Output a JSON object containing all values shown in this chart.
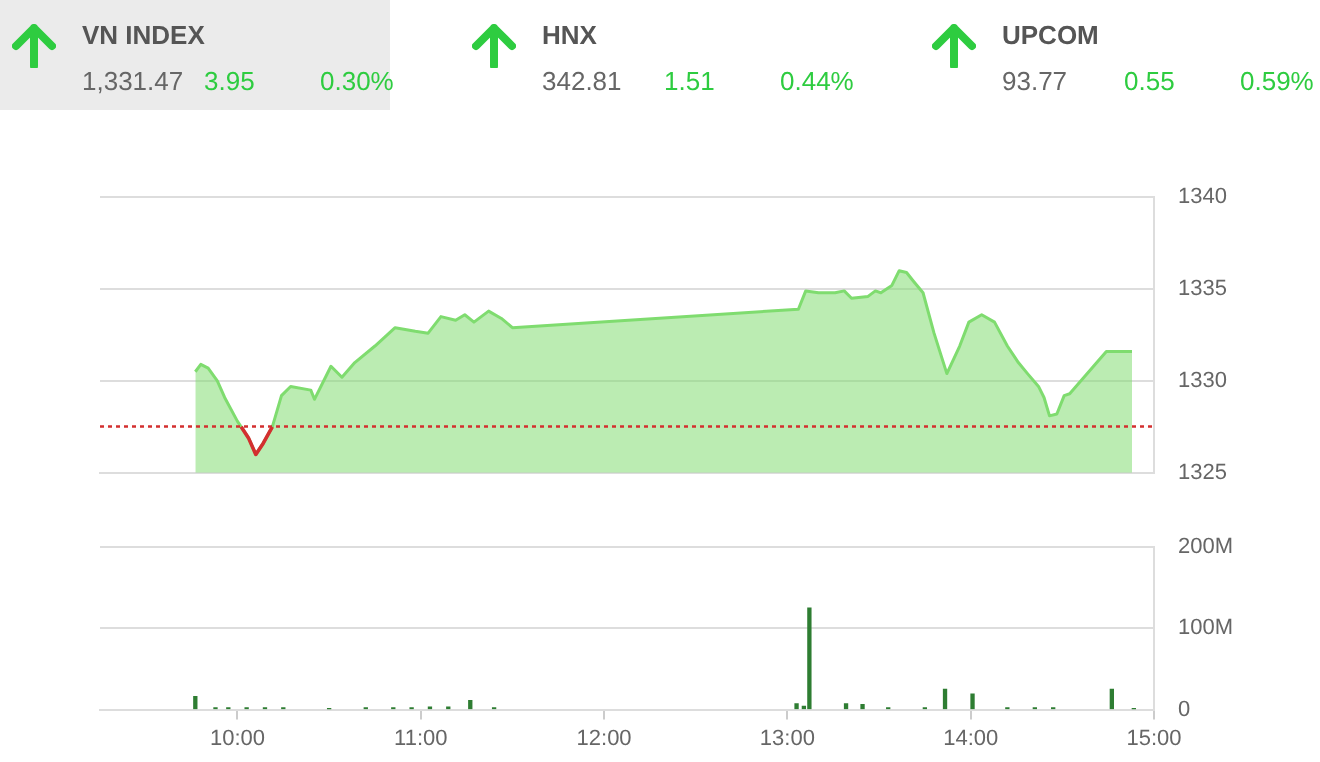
{
  "chart_data": [
    {
      "type": "other",
      "title": "VN INDEX",
      "annotations": [
        "1,331.47",
        "3.95",
        "0.30%"
      ]
    },
    {
      "type": "other",
      "title": "HNX",
      "annotations": [
        "342.81",
        "1.51",
        "0.44%"
      ]
    },
    {
      "type": "other",
      "title": "UPCOM",
      "annotations": [
        "93.77",
        "0.55",
        "0.59%"
      ]
    },
    {
      "type": "area",
      "xlim": [
        9.25,
        15
      ],
      "ylim": [
        1325,
        1340
      ],
      "yticks": [
        1325,
        1330,
        1335,
        1340
      ],
      "tick_labels": "y",
      "grid": "y",
      "ref_lines": [
        {
          "axis": "y",
          "value": 1327.52,
          "color": "#d32f2f",
          "line_style": "dotted"
        }
      ],
      "series": [
        {
          "color": "#7fdc6f",
          "x": [
            9.77,
            9.8,
            9.84,
            9.89,
            9.93,
            10.0,
            10.06,
            10.1,
            10.14,
            10.19,
            10.24,
            10.29,
            10.4,
            10.42,
            10.51,
            10.57,
            10.64,
            10.75,
            10.86,
            10.97,
            11.04,
            11.11,
            11.19,
            11.24,
            11.29,
            11.37,
            11.44,
            11.5,
            13.06,
            13.1,
            13.17,
            13.26,
            13.31,
            13.35,
            13.44,
            13.48,
            13.51,
            13.57,
            13.61,
            13.65,
            13.69,
            13.74,
            13.8,
            13.87,
            13.94,
            13.99,
            14.06,
            14.13,
            14.2,
            14.26,
            14.31,
            14.37,
            14.4,
            14.43,
            14.47,
            14.51,
            14.54,
            14.74,
            14.88
          ],
          "values": [
            1330.5,
            1330.9,
            1330.7,
            1330.0,
            1329.1,
            1327.8,
            1326.9,
            1326.0,
            1326.6,
            1327.5,
            1329.2,
            1329.7,
            1329.5,
            1329.0,
            1330.8,
            1330.2,
            1331.0,
            1331.9,
            1332.9,
            1332.7,
            1332.6,
            1333.5,
            1333.3,
            1333.6,
            1333.2,
            1333.8,
            1333.4,
            1332.9,
            1333.9,
            1334.9,
            1334.8,
            1334.8,
            1334.9,
            1334.5,
            1334.6,
            1334.9,
            1334.8,
            1335.2,
            1336.0,
            1335.9,
            1335.4,
            1334.8,
            1332.6,
            1330.4,
            1331.9,
            1333.2,
            1333.6,
            1333.2,
            1331.9,
            1331.0,
            1330.4,
            1329.7,
            1329.1,
            1328.1,
            1328.2,
            1329.2,
            1329.3,
            1331.6,
            1331.6
          ]
        },
        {
          "type": "line",
          "color": "#d32f2f",
          "x": [
            10.02,
            10.06,
            10.1,
            10.14,
            10.19
          ],
          "values": [
            1327.5,
            1326.9,
            1326.0,
            1326.6,
            1327.5
          ]
        }
      ]
    },
    {
      "type": "bar",
      "xlim": [
        9.25,
        15
      ],
      "xticks": [
        {
          "value": 10,
          "label": "10:00"
        },
        {
          "value": 11,
          "label": "11:00"
        },
        {
          "value": 12,
          "label": "12:00"
        },
        {
          "value": 13,
          "label": "13:00"
        },
        {
          "value": 14,
          "label": "14:00"
        },
        {
          "value": 15,
          "label": "15:00"
        }
      ],
      "ylim": [
        0,
        200
      ],
      "yticks": [
        0,
        {
          "value": 100,
          "label": "100M"
        },
        {
          "value": 200,
          "label": "200M"
        }
      ],
      "grid": "y",
      "series": [
        {
          "color": "#2e7d32",
          "x": [
            9.77,
            9.88,
            9.95,
            10.05,
            10.15,
            10.25,
            10.5,
            10.7,
            10.85,
            10.95,
            11.05,
            11.15,
            11.27,
            11.4,
            13.05,
            13.09,
            13.12,
            13.32,
            13.41,
            13.55,
            13.75,
            13.86,
            14.01,
            14.2,
            14.35,
            14.45,
            14.77,
            14.89
          ],
          "values": [
            16,
            2,
            2,
            2,
            2,
            2,
            1,
            2,
            2,
            2,
            3,
            3,
            11,
            2,
            7,
            4,
            125,
            7,
            6,
            2,
            2,
            25,
            19,
            2,
            2,
            2,
            25,
            1
          ]
        }
      ]
    }
  ]
}
